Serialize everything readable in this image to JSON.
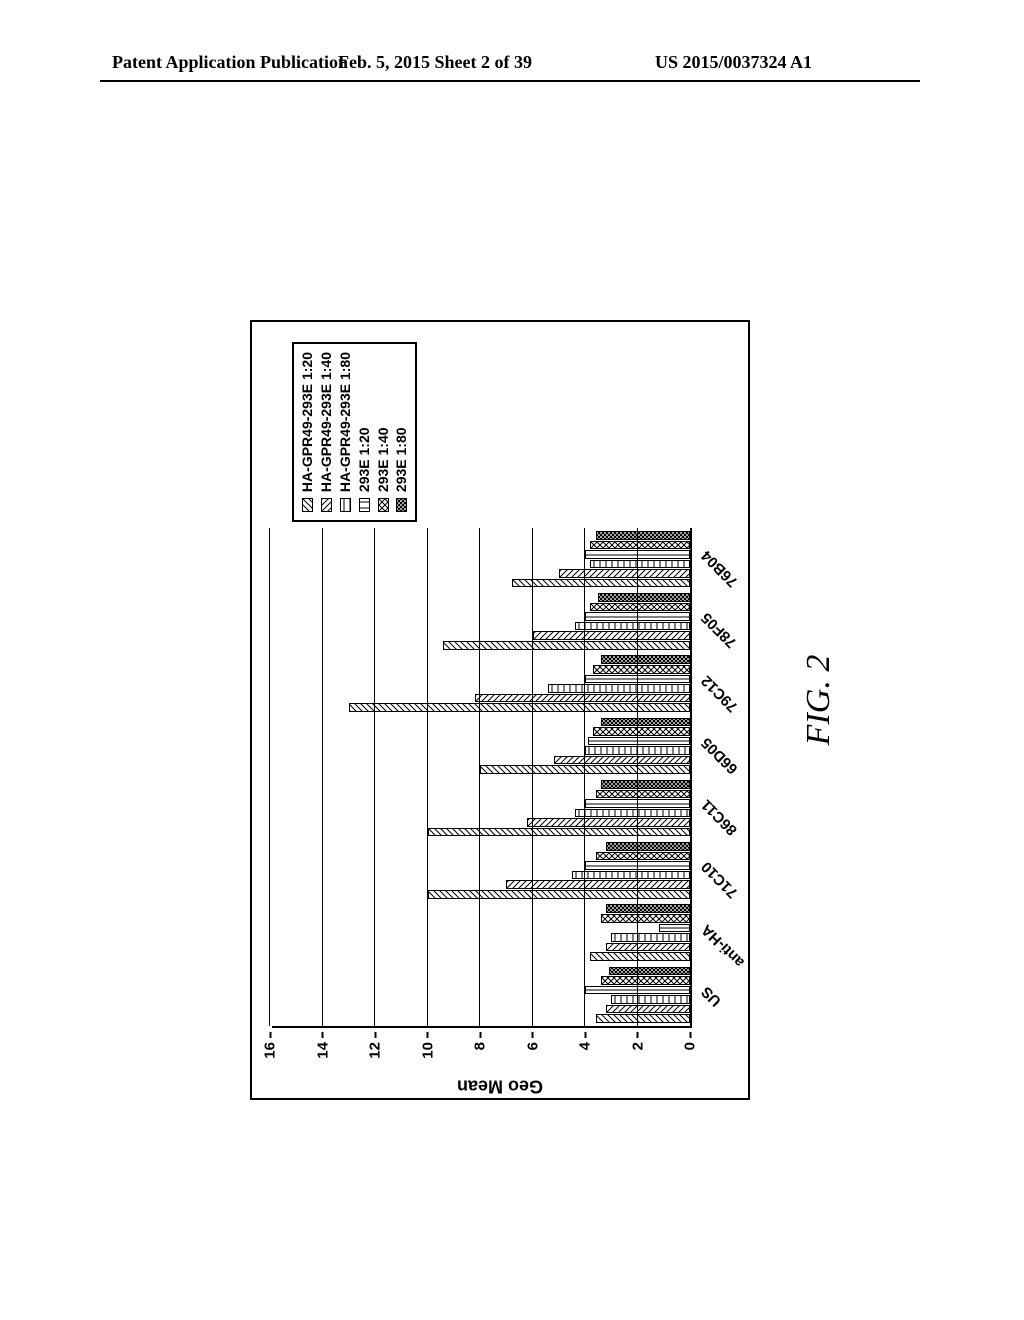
{
  "header": {
    "left": "Patent Application Publication",
    "center": "Feb. 5, 2015  Sheet 2 of 39",
    "right": "US 2015/0037324 A1"
  },
  "figure": {
    "caption": "FIG. 2",
    "yAxis": {
      "title": "Geo Mean",
      "min": 0,
      "max": 16,
      "step": 2,
      "ticks": [
        0,
        2,
        4,
        6,
        8,
        10,
        12,
        14,
        16
      ],
      "fontsize": 15,
      "title_fontsize": 18
    },
    "categories": [
      "US",
      "anti-HA",
      "71C10",
      "86C11",
      "66D05",
      "79C12",
      "78F05",
      "76B04"
    ],
    "series": [
      {
        "label": "HA-GPR49-293E 1:20",
        "pattern": "pat-diag-ne"
      },
      {
        "label": "HA-GPR49-293E 1:40",
        "pattern": "pat-diag-nw"
      },
      {
        "label": "HA-GPR49-293E 1:80",
        "pattern": "pat-horiz"
      },
      {
        "label": "293E 1:20",
        "pattern": "pat-vert"
      },
      {
        "label": "293E 1:40",
        "pattern": "pat-cross"
      },
      {
        "label": "293E 1:80",
        "pattern": "pat-dense"
      }
    ],
    "values": {
      "US": [
        3.6,
        3.2,
        3.0,
        4.0,
        3.4,
        3.1
      ],
      "anti-HA": [
        3.8,
        3.2,
        3.0,
        1.2,
        3.4,
        3.2
      ],
      "71C10": [
        10.0,
        7.0,
        4.5,
        4.0,
        3.6,
        3.2
      ],
      "86C11": [
        10.0,
        6.2,
        4.4,
        4.0,
        3.6,
        3.4
      ],
      "66D05": [
        8.0,
        5.2,
        4.0,
        3.9,
        3.7,
        3.4
      ],
      "79C12": [
        13.0,
        8.2,
        5.4,
        4.0,
        3.7,
        3.4
      ],
      "78F05": [
        9.4,
        6.0,
        4.4,
        4.0,
        3.8,
        3.5
      ],
      "76B04": [
        6.8,
        5.0,
        3.8,
        4.0,
        3.8,
        3.6
      ]
    },
    "colors": {
      "border": "#000000",
      "background": "#ffffff",
      "gridline": "#000000"
    },
    "legend_fontsize": 14,
    "xlabel_fontsize": 15
  }
}
